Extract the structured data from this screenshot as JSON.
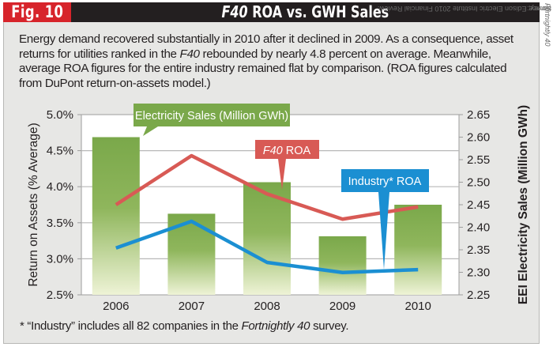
{
  "header": {
    "fig_label": "Fig. 10",
    "title_italic": "F40",
    "title_rest": " ROA vs. GWH Sales"
  },
  "intro": {
    "part1": "Energy demand recovered substantially in 2010 after it declined in 2009. As a consequence, asset returns for utilities ranked in the ",
    "italic": "F40",
    "part2": " rebounded by nearly 4.8 percent on average. Meanwhile, average ROA figures for the entire industry remained flat by comparison. (ROA figures calculated from DuPont return-on-assets model.)"
  },
  "footnote": {
    "part1": "* “Industry” includes all 82 companies in the ",
    "italic": "Fortnightly 40",
    "part2": " survey."
  },
  "source": {
    "prefix": "Source: ",
    "italic": "Fortnightly 40",
    "rest": " survey; Edison Electric Institute 2010 Financial Review."
  },
  "colors": {
    "bar": "#7aa84a",
    "bar_light": "#eef3d6",
    "f40_line": "#d85a55",
    "industry_line": "#1b8fd2",
    "fig_red": "#d7242b",
    "title_black": "#231f20"
  },
  "chart_data": {
    "type": "bar",
    "title": "F40 ROA vs. GWH Sales",
    "categories": [
      "2006",
      "2007",
      "2008",
      "2009",
      "2010"
    ],
    "series": [
      {
        "name": "Electricity Sales (Million GWh)",
        "type": "bar",
        "axis": "right",
        "values": [
          2.6,
          2.43,
          2.5,
          2.38,
          2.45
        ]
      },
      {
        "name": "F40 ROA",
        "name_italic": "F40",
        "name_rest": " ROA",
        "type": "line",
        "axis": "left",
        "values": [
          3.75,
          4.43,
          3.9,
          3.55,
          3.72
        ]
      },
      {
        "name": "Industry* ROA",
        "type": "line",
        "axis": "left",
        "values": [
          3.15,
          3.52,
          2.95,
          2.81,
          2.85
        ]
      }
    ],
    "ylabel": "Return on Assets (% Average)",
    "y2label": "EEI Electricity Sales (Million GWh)",
    "ylim": [
      2.5,
      5.0
    ],
    "y2lim": [
      2.25,
      2.65
    ],
    "yticks": [
      "2.5%",
      "3.0%",
      "3.5%",
      "4.0%",
      "4.5%",
      "5.0%"
    ],
    "y2ticks": [
      "2.25",
      "2.30",
      "2.35",
      "2.40",
      "2.45",
      "2.50",
      "2.55",
      "2.60",
      "2.65"
    ],
    "grid": true,
    "legend": "callout labels inside plot"
  }
}
